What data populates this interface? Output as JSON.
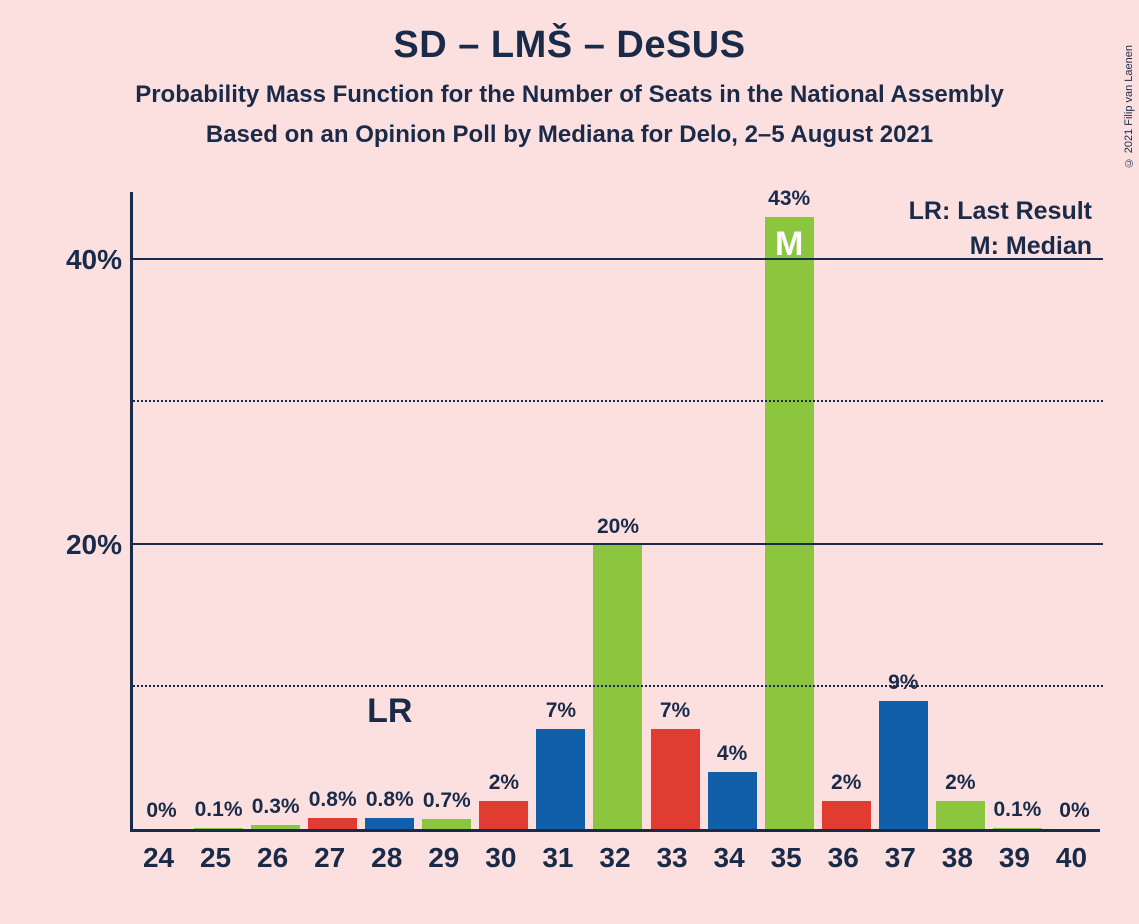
{
  "title": "SD – LMŠ – DeSUS",
  "subtitle": "Probability Mass Function for the Number of Seats in the National Assembly",
  "source": "Based on an Opinion Poll by Mediana for Delo, 2–5 August 2021",
  "copyright": "© 2021 Filip van Laenen",
  "chart": {
    "type": "bar",
    "background_color": "#fce0e0",
    "axis_color": "#1a2b4a",
    "text_color": "#1a2b4a",
    "ylim": [
      0,
      45
    ],
    "y_major_ticks": [
      20,
      40
    ],
    "y_minor_ticks": [
      10,
      30
    ],
    "y_tick_labels": [
      "20%",
      "40%"
    ],
    "categories": [
      "24",
      "25",
      "26",
      "27",
      "28",
      "29",
      "30",
      "31",
      "32",
      "33",
      "34",
      "35",
      "36",
      "37",
      "38",
      "39",
      "40"
    ],
    "values": [
      0,
      0.1,
      0.3,
      0.8,
      0.8,
      0.7,
      2,
      7,
      20,
      7,
      4,
      43,
      2,
      9,
      2,
      0.1,
      0
    ],
    "value_labels": [
      "0%",
      "0.1%",
      "0.3%",
      "0.8%",
      "0.8%",
      "0.7%",
      "2%",
      "7%",
      "20%",
      "7%",
      "4%",
      "43%",
      "2%",
      "9%",
      "2%",
      "0.1%",
      "0%"
    ],
    "bar_colors": [
      "#8bc63e",
      "#8bc63e",
      "#8bc63e",
      "#e03c31",
      "#115fa8",
      "#8bc63e",
      "#e03c31",
      "#115fa8",
      "#8bc63e",
      "#e03c31",
      "#115fa8",
      "#8bc63e",
      "#e03c31",
      "#115fa8",
      "#8bc63e",
      "#8bc63e",
      "#8bc63e"
    ],
    "median_index": 11,
    "lr_index": 4,
    "legend": {
      "lr": "LR: Last Result",
      "m": "M: Median",
      "m_glyph": "M",
      "lr_glyph": "LR"
    }
  }
}
